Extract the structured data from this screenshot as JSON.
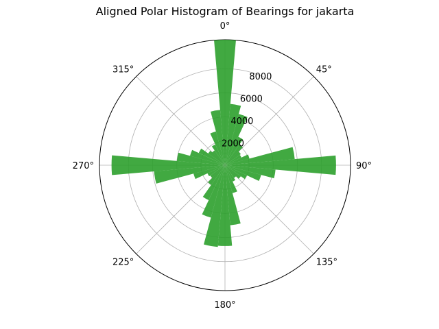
{
  "chart_data": {
    "type": "polar-bar",
    "title": "Aligned Polar Histogram of Bearings for jakarta",
    "theta_zero_location": "N",
    "theta_direction": "clockwise",
    "angle_tick_labels": [
      "0°",
      "45°",
      "90°",
      "135°",
      "180°",
      "225°",
      "270°",
      "315°"
    ],
    "radial_ticks": [
      2000,
      4000,
      6000,
      8000
    ],
    "radial_tick_labels": [
      "2000",
      "4000",
      "6000",
      "8000"
    ],
    "rmax": 10400,
    "bar_width_deg": 10,
    "bar_color": "#2ca02c",
    "bar_alpha": 0.9,
    "grid": true,
    "bins": [
      {
        "angle": 0,
        "value": 10400
      },
      {
        "angle": 10,
        "value": 5100
      },
      {
        "angle": 20,
        "value": 4400
      },
      {
        "angle": 30,
        "value": 2600
      },
      {
        "angle": 40,
        "value": 2100
      },
      {
        "angle": 50,
        "value": 1600
      },
      {
        "angle": 60,
        "value": 1500
      },
      {
        "angle": 70,
        "value": 2100
      },
      {
        "angle": 80,
        "value": 5800
      },
      {
        "angle": 90,
        "value": 9200
      },
      {
        "angle": 100,
        "value": 4200
      },
      {
        "angle": 110,
        "value": 3100
      },
      {
        "angle": 120,
        "value": 2000
      },
      {
        "angle": 130,
        "value": 1600
      },
      {
        "angle": 140,
        "value": 1300
      },
      {
        "angle": 150,
        "value": 1500
      },
      {
        "angle": 160,
        "value": 2400
      },
      {
        "angle": 170,
        "value": 5000
      },
      {
        "angle": 180,
        "value": 6700
      },
      {
        "angle": 190,
        "value": 6800
      },
      {
        "angle": 200,
        "value": 4500
      },
      {
        "angle": 210,
        "value": 3200
      },
      {
        "angle": 220,
        "value": 2000
      },
      {
        "angle": 230,
        "value": 1500
      },
      {
        "angle": 240,
        "value": 1600
      },
      {
        "angle": 250,
        "value": 2700
      },
      {
        "angle": 260,
        "value": 5900
      },
      {
        "angle": 270,
        "value": 9400
      },
      {
        "angle": 280,
        "value": 4000
      },
      {
        "angle": 290,
        "value": 3000
      },
      {
        "angle": 300,
        "value": 2400
      },
      {
        "angle": 310,
        "value": 1700
      },
      {
        "angle": 320,
        "value": 1500
      },
      {
        "angle": 330,
        "value": 1900
      },
      {
        "angle": 340,
        "value": 2900
      },
      {
        "angle": 350,
        "value": 4600
      }
    ]
  }
}
